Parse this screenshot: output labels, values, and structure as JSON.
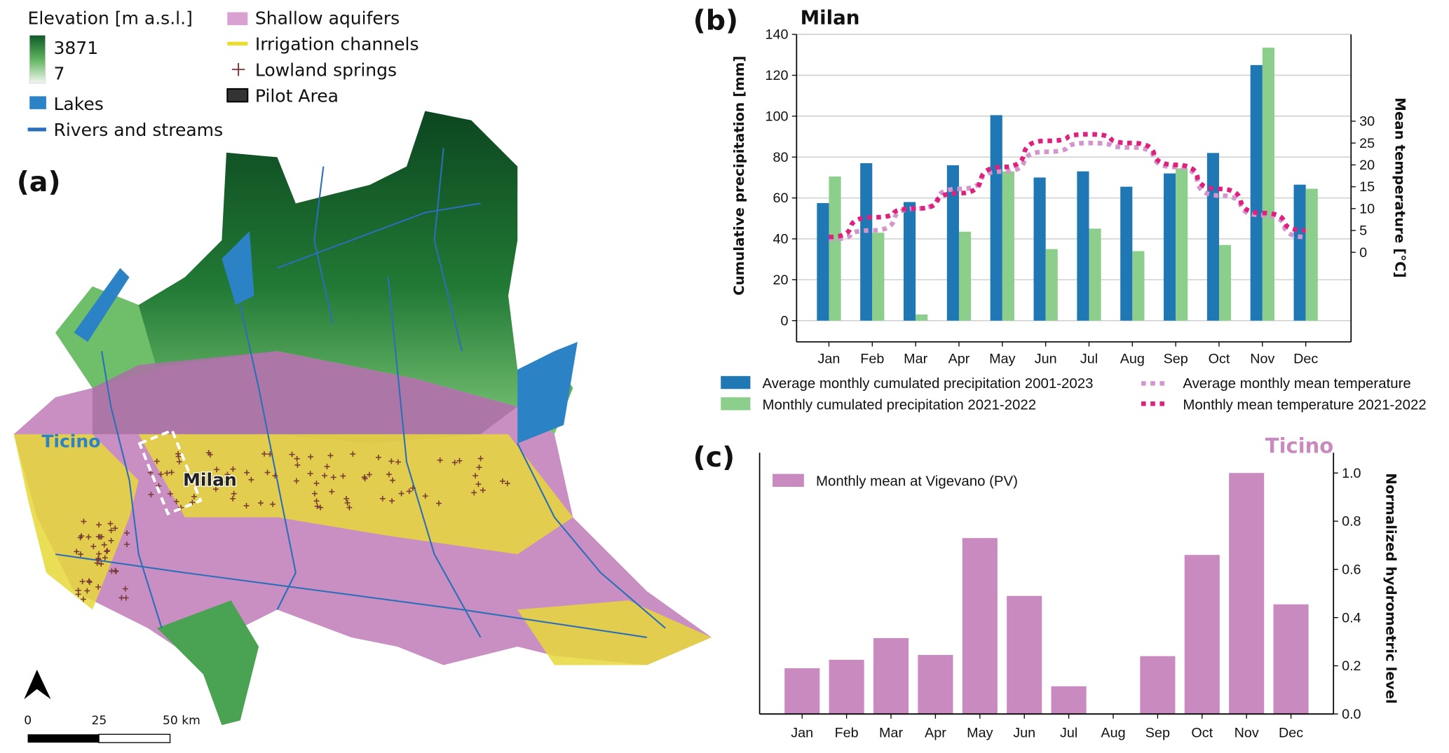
{
  "panel_labels": {
    "a": "(a)",
    "b": "(b)",
    "c": "(c)"
  },
  "map": {
    "legend": {
      "elevation_title": "Elevation [m a.s.l.]",
      "elevation_max": "3871",
      "elevation_min": "7",
      "lakes": "Lakes",
      "rivers": "Rivers and streams",
      "shallow_aquifers": "Shallow aquifers",
      "irrigation_channels": "Irrigation channels",
      "lowland_springs": "Lowland springs",
      "pilot_area": "Pilot Area"
    },
    "labels": {
      "river": "Ticino",
      "city": "Milan"
    },
    "scale_bar": {
      "zero": "0",
      "mid": "25",
      "end": "50 km"
    },
    "colors": {
      "lakes": "#2b83c6",
      "rivers": "#2b6fb8",
      "aquifers": "#c98ec2",
      "channels": "#ecdc2a",
      "springs": "#7a3b35",
      "mountain_dark": "#0f4d25",
      "mountain_light": "#6fbf6a"
    }
  },
  "chart_data": [
    {
      "type": "bar+line",
      "title": "Milan",
      "ylabel": "Cumulative precipitation [mm]",
      "y2label": "Mean temperature [°C]",
      "ylim": [
        0,
        140
      ],
      "yticks": [
        0,
        20,
        40,
        60,
        80,
        100,
        120,
        140
      ],
      "y2ticks": [
        0,
        5,
        10,
        15,
        20,
        25,
        30
      ],
      "grid": true,
      "legend_placement": "bottom",
      "categories": [
        "Jan",
        "Feb",
        "Mar",
        "Apr",
        "May",
        "Jun",
        "Jul",
        "Aug",
        "Sep",
        "Oct",
        "Nov",
        "Dec"
      ],
      "series": [
        {
          "name": "Average monthly cumulated precipitation 2001-2023",
          "kind": "bar",
          "axis": "left",
          "color": "#1f77b4",
          "values": [
            57.5,
            77,
            58,
            76,
            100.5,
            70,
            73,
            65.5,
            72,
            82,
            125,
            66.5
          ]
        },
        {
          "name": "Monthly cumulated precipitation 2021-2022",
          "kind": "bar",
          "axis": "left",
          "color": "#8ccf8c",
          "values": [
            70.5,
            43,
            3,
            43.5,
            73,
            35,
            45,
            34,
            74.5,
            37,
            133.5,
            64.5
          ]
        },
        {
          "name": "Average monthly mean temperature",
          "kind": "dotted-line",
          "axis": "right",
          "color": "#d395cd",
          "values": [
            3,
            5,
            10,
            14.5,
            18.5,
            23,
            25,
            24,
            19.5,
            13,
            8.5,
            3.5
          ]
        },
        {
          "name": "Monthly mean temperature 2021-2022",
          "kind": "dotted-line",
          "axis": "right",
          "color": "#e0207e",
          "values": [
            3.5,
            8,
            10,
            13.5,
            19.5,
            25.5,
            27,
            25,
            20,
            14.5,
            9,
            5
          ]
        }
      ]
    },
    {
      "type": "bar",
      "title": "Ticino",
      "ylabel": "Normalized hydrometric level",
      "ylim": [
        0,
        1.05
      ],
      "yticks": [
        "0.0",
        "0.2",
        "0.4",
        "0.6",
        "0.8",
        "1.0"
      ],
      "grid": false,
      "legend_placement": "top-left",
      "categories": [
        "Jan",
        "Feb",
        "Mar",
        "Apr",
        "May",
        "Jun",
        "Jul",
        "Aug",
        "Sep",
        "Oct",
        "Nov",
        "Dec"
      ],
      "series": [
        {
          "name": "Monthly mean at Vigevano (PV)",
          "color": "#c98ac0",
          "values": [
            0.19,
            0.225,
            0.315,
            0.245,
            0.73,
            0.49,
            0.115,
            0,
            0.24,
            0.66,
            1.0,
            0.455
          ]
        }
      ]
    }
  ]
}
